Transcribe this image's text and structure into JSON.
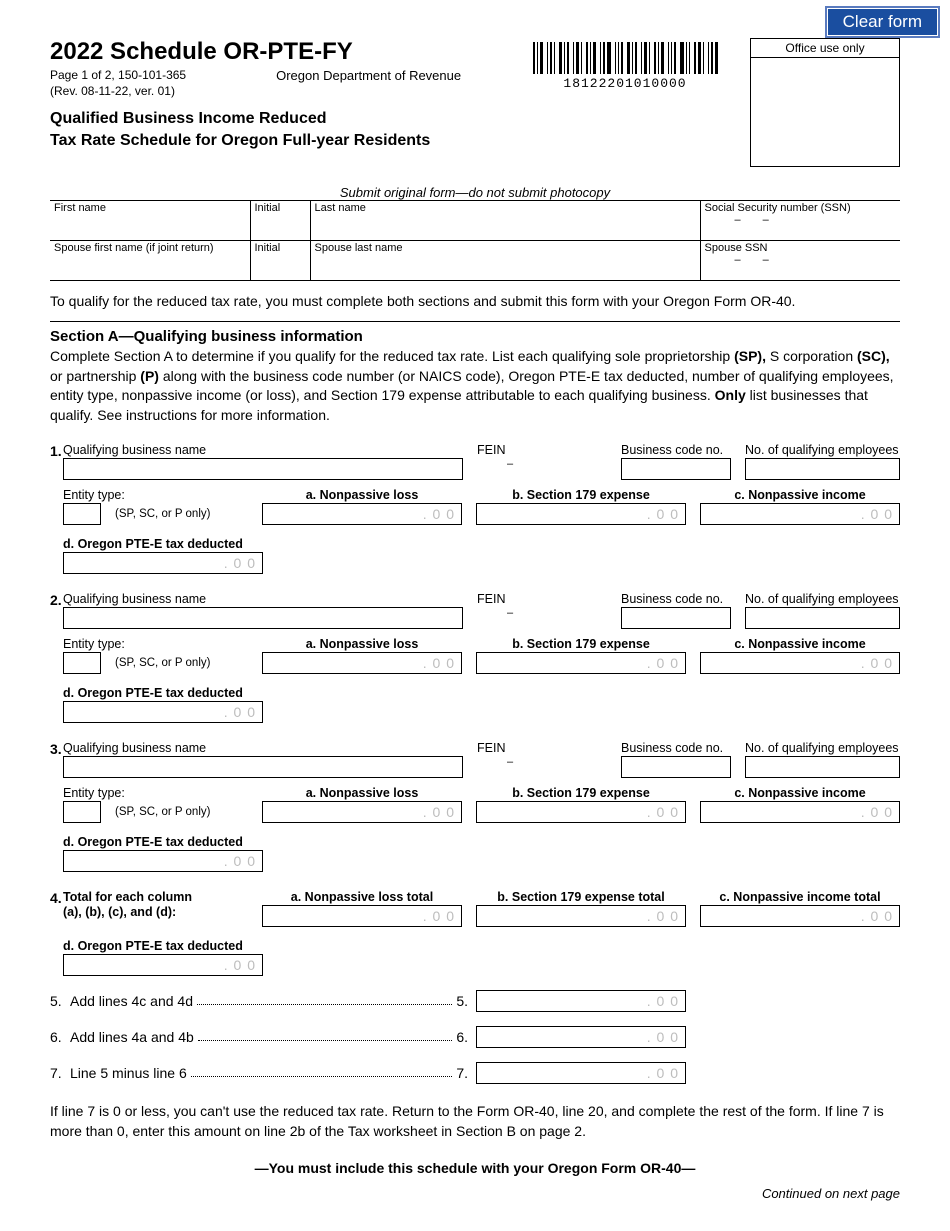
{
  "clear_button": "Clear form",
  "header": {
    "title": "2022 Schedule OR-PTE-FY",
    "page_line": "Page 1 of 2, 150-101-365",
    "rev_line": "(Rev. 08-11-22, ver. 01)",
    "dept": "Oregon Department of Revenue",
    "subtitle1": "Qualified Business Income Reduced",
    "subtitle2": "Tax Rate Schedule for Oregon Full-year Residents",
    "barcode_number": "18122201010000",
    "office_use": "Office use only"
  },
  "instr_italic": "Submit original form—do not submit photocopy",
  "name_table": {
    "first_name": "First name",
    "initial": "Initial",
    "last_name": "Last name",
    "ssn": "Social Security number (SSN)",
    "spouse_first": "Spouse first name (if joint return)",
    "spouse_initial": "Initial",
    "spouse_last": "Spouse last name",
    "spouse_ssn": "Spouse SSN",
    "dash": "–  –"
  },
  "qualify_note": "To qualify for the reduced tax rate, you must complete both sections and submit this form with your Oregon Form OR-40.",
  "sectionA": {
    "heading": "Section A—Qualifying business information",
    "text_parts": {
      "p1": "Complete Section A to determine if you qualify for the reduced tax rate. List each qualifying sole proprietorship ",
      "sp": "(SP),",
      "p2": " S corporation ",
      "sc": "(SC),",
      "p3": " or partnership ",
      "p": "(P)",
      "p4": " along with the business code number (or NAICS code), Oregon PTE-E tax deducted, number of qualifying employees, entity type, nonpassive income (or loss), and Section 179 expense attributable to each qualifying business. ",
      "only": "Only",
      "p5": " list businesses that qualify. See instructions for more information."
    }
  },
  "labels": {
    "qbn": "Qualifying business name",
    "fein": "FEIN",
    "bcode": "Business code no.",
    "emp": "No. of qualifying employees",
    "entity": "Entity type:",
    "entity_hint": "(SP, SC, or P only)",
    "a": "a. Nonpassive loss",
    "b": "b. Section 179 expense",
    "c": "c. Nonpassive income",
    "d": "d. Oregon PTE-E tax deducted",
    "fein_dash": "–"
  },
  "row4": {
    "label1": "Total for each column",
    "label2": "(a), (b), (c), and (d):",
    "a": "a. Nonpassive loss total",
    "b": "b. Section 179 expense total",
    "c": "c. Nonpassive income total",
    "d": "d. Oregon PTE-E tax deducted"
  },
  "lines": {
    "l5_num": "5.",
    "l5_text": "Add lines 4c and 4d",
    "l5_suffix": "5.",
    "l6_num": "6.",
    "l6_text": "Add lines 4a and 4b",
    "l6_suffix": "6.",
    "l7_num": "7.",
    "l7_text": "Line 5 minus line 6",
    "l7_suffix": "7."
  },
  "footer": {
    "note": "If line 7 is 0 or less, you can't use the reduced tax rate. Return to the Form OR-40, line 20, and complete the rest of the form. If line 7 is more than 0, enter this amount on line 2b of the Tax worksheet in Section B on page 2.",
    "must_include": "—You must include this schedule with your Oregon Form OR-40—",
    "continued": "Continued on next page"
  },
  "nums": {
    "n1": "1.",
    "n2": "2.",
    "n3": "3.",
    "n4": "4."
  }
}
